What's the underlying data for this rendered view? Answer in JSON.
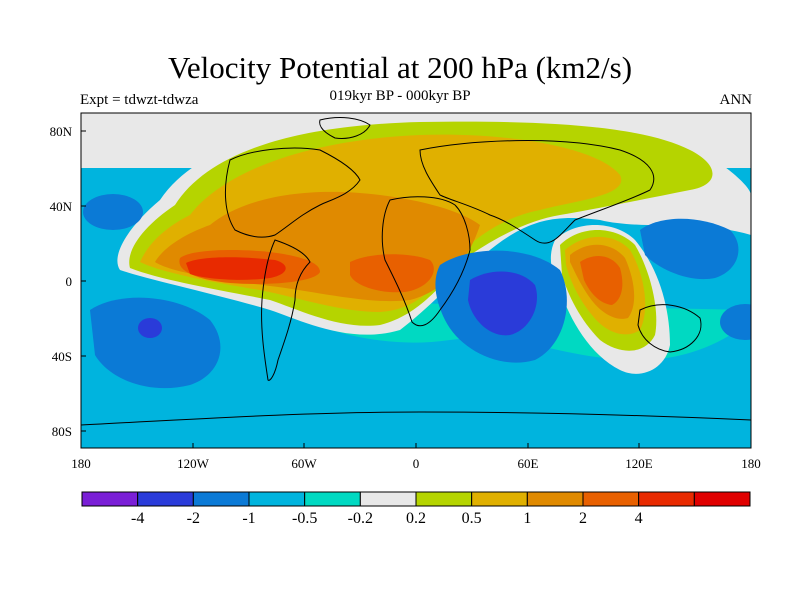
{
  "header": {
    "title": "Velocity Potential at 200 hPa (km2/s)",
    "experiment": "Expt = tdwzt-tdwza",
    "period": "019kyr BP - 000kyr BP",
    "season": "ANN"
  },
  "axes": {
    "lat_ticks": [
      "80N",
      "40N",
      "0",
      "40S",
      "80S"
    ],
    "lon_ticks": [
      "180",
      "120W",
      "60W",
      "0",
      "60E",
      "120E",
      "180"
    ]
  },
  "colorbar": {
    "colors": [
      "#7a1fd6",
      "#2a3bd9",
      "#0b7ad6",
      "#00b4de",
      "#00d9c2",
      "#e8e8e8",
      "#b5d400",
      "#e0b000",
      "#e08a00",
      "#e86000",
      "#e82a00",
      "#e00000"
    ],
    "labels": [
      "-4",
      "-2",
      "-1",
      "-0.5",
      "-0.2",
      "0.2",
      "0.5",
      "1",
      "2",
      "4"
    ]
  }
}
